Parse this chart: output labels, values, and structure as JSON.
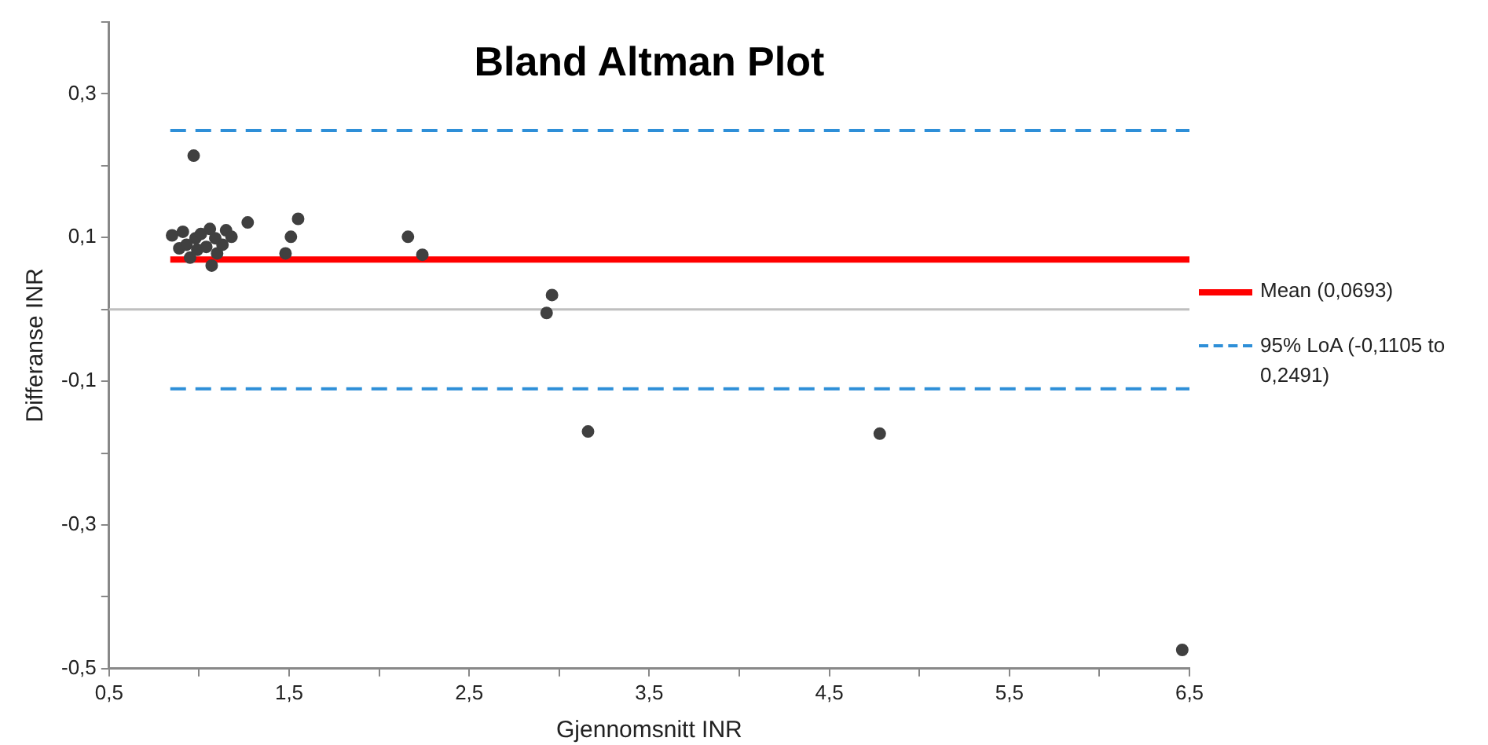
{
  "chart_data": {
    "type": "scatter",
    "title": "Bland Altman Plot",
    "xlabel": "Gjennomsnitt INR",
    "ylabel": "Differanse INR",
    "xlim": [
      0.5,
      6.5
    ],
    "xticks": [
      {
        "value": 0.5,
        "label": "0,5"
      },
      {
        "value": 1,
        "label": null
      },
      {
        "value": 1.5,
        "label": "1,5"
      },
      {
        "value": 2,
        "label": null
      },
      {
        "value": 2.5,
        "label": "2,5"
      },
      {
        "value": 3,
        "label": null
      },
      {
        "value": 3.5,
        "label": "3,5"
      },
      {
        "value": 4,
        "label": null
      },
      {
        "value": 4.5,
        "label": "4,5"
      },
      {
        "value": 5,
        "label": null
      },
      {
        "value": 5.5,
        "label": "5,5"
      },
      {
        "value": 6,
        "label": null
      },
      {
        "value": 6.5,
        "label": "6,5"
      }
    ],
    "ylim": [
      -0.5,
      0.4
    ],
    "yticks": [
      {
        "value": -0.5,
        "label": "-0,5"
      },
      {
        "value": -0.4,
        "label": null
      },
      {
        "value": -0.3,
        "label": "-0,3"
      },
      {
        "value": -0.2,
        "label": null
      },
      {
        "value": -0.1,
        "label": "-0,1"
      },
      {
        "value": 0,
        "label": null
      },
      {
        "value": 0.1,
        "label": "0,1"
      },
      {
        "value": 0.2,
        "label": null
      },
      {
        "value": 0.3,
        "label": "0,3"
      },
      {
        "value": 0.4,
        "label": null
      }
    ],
    "grid": false,
    "legend": "right",
    "ref_lines": [
      {
        "axis": "y",
        "value": 0,
        "color": "#bfbfbf",
        "line_style": "solid"
      }
    ],
    "series": [
      {
        "type": "scatter",
        "color": "#404040",
        "marker": "circle",
        "x": [
          0.85,
          0.91,
          0.89,
          0.95,
          0.98,
          1.01,
          1.06,
          1.07,
          1.1,
          1.15,
          1.18,
          1.04,
          0.93,
          1.13,
          0.99,
          1.09,
          0.97,
          1.27,
          1.55,
          1.51,
          1.48,
          2.16,
          2.24,
          2.96,
          2.93,
          3.16,
          4.78,
          6.46
        ],
        "values": [
          0.103,
          0.108,
          0.085,
          0.072,
          0.099,
          0.105,
          0.112,
          0.061,
          0.078,
          0.11,
          0.101,
          0.087,
          0.09,
          0.09,
          0.083,
          0.099,
          0.214,
          0.121,
          0.126,
          0.101,
          0.078,
          0.101,
          0.076,
          0.02,
          -0.005,
          -0.17,
          -0.173,
          -0.474
        ]
      },
      {
        "type": "line",
        "name": "Mean (0,0693)",
        "color": "#ff0000",
        "marker": "none",
        "line_style": "solid",
        "x": [
          0.84,
          6.5
        ],
        "values": [
          0.0693,
          0.0693
        ]
      },
      {
        "type": "line",
        "name": "95% LoA (-0,1105 to 0,2491)",
        "color": "#2e8fd8",
        "marker": "none",
        "line_style": "dashed",
        "x": [
          0.84,
          6.5
        ],
        "values": [
          0.2491,
          0.2491
        ]
      },
      {
        "type": "line",
        "color": "#2e8fd8",
        "marker": "none",
        "line_style": "dashed",
        "x": [
          0.84,
          6.5
        ],
        "values": [
          -0.1105,
          -0.1105
        ]
      }
    ]
  }
}
